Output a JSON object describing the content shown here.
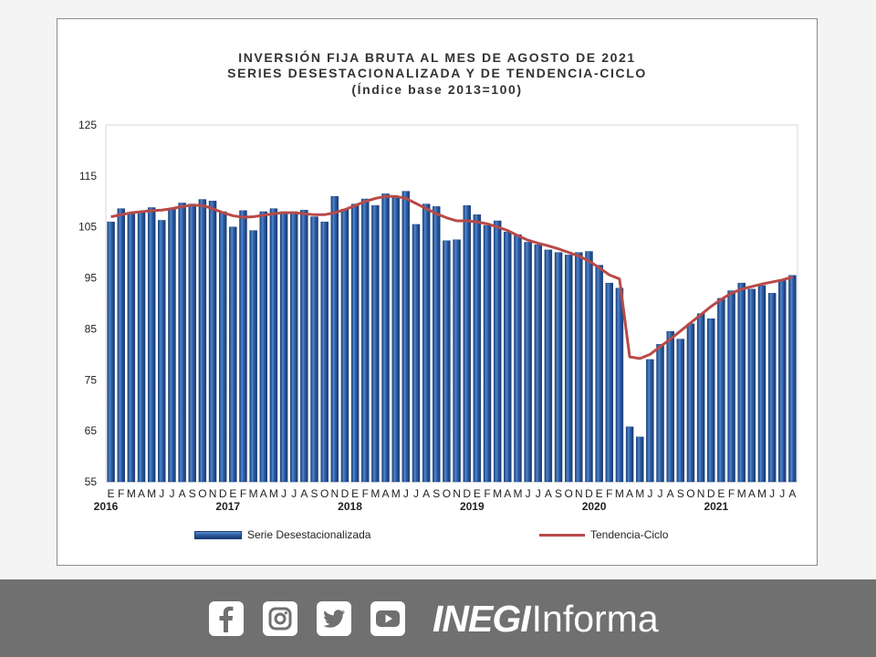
{
  "chart_data": {
    "type": "bar",
    "title": "INVERSIÓN FIJA BRUTA AL MES DE AGOSTO DE 2021",
    "subtitle": "SERIES DESESTACIONALIZADA Y DE TENDENCIA-CICLO",
    "subtitle2": "(Índice base 2013=100)",
    "xlabel": "",
    "ylabel": "",
    "ylim": [
      55,
      125
    ],
    "yticks": [
      "125",
      "115",
      "105",
      "95",
      "85",
      "75",
      "65",
      "55"
    ],
    "ytick_values": [
      125,
      115,
      105,
      95,
      85,
      75,
      65,
      55
    ],
    "month_letters": "EFMAMJJASONDEFMAMJJASONDEFMAMJJASONDEFMAMJJASONDEFMAMJJASONDEFMAMJJA",
    "years": [
      {
        "label": "2016",
        "index": 0
      },
      {
        "label": "2017",
        "index": 12
      },
      {
        "label": "2018",
        "index": 24
      },
      {
        "label": "2019",
        "index": 36
      },
      {
        "label": "2020",
        "index": 48
      },
      {
        "label": "2021",
        "index": 60
      }
    ],
    "series": [
      {
        "name": "Serie Desestacionalizada",
        "kind": "bar",
        "color": "#2c5aa0",
        "values": [
          106.0,
          108.6,
          107.6,
          108.0,
          108.8,
          106.3,
          108.5,
          109.7,
          109.5,
          110.4,
          110.1,
          108.0,
          105.0,
          108.2,
          104.3,
          108.0,
          108.6,
          108.0,
          108.0,
          108.3,
          107.0,
          106.0,
          111.0,
          108.5,
          109.5,
          110.5,
          109.2,
          111.5,
          111.0,
          112.0,
          105.5,
          109.5,
          109.0,
          102.3,
          102.5,
          109.2,
          107.4,
          105.3,
          106.2,
          104.0,
          103.5,
          102.0,
          101.5,
          100.5,
          100.0,
          99.5,
          100.0,
          100.2,
          97.5,
          94.0,
          93.0,
          65.8,
          63.8,
          79.0,
          82.0,
          84.5,
          83.0,
          86.0,
          88.0,
          87.0,
          91.0,
          92.5,
          94.0,
          92.8,
          93.5,
          92.0,
          94.5,
          95.5
        ]
      },
      {
        "name": "Tendencia-Ciclo",
        "kind": "line",
        "color": "#b94a48",
        "values": [
          107.0,
          107.4,
          107.8,
          108.0,
          108.2,
          108.3,
          108.6,
          109.0,
          109.3,
          109.2,
          108.6,
          107.8,
          107.2,
          106.9,
          107.0,
          107.3,
          107.6,
          107.8,
          107.8,
          107.6,
          107.4,
          107.4,
          107.8,
          108.4,
          109.2,
          110.0,
          110.6,
          111.0,
          111.0,
          110.6,
          109.6,
          108.6,
          107.6,
          106.8,
          106.2,
          106.2,
          106.0,
          105.6,
          105.0,
          104.3,
          103.3,
          102.4,
          101.8,
          101.3,
          100.7,
          100.0,
          99.3,
          98.3,
          97.0,
          95.6,
          94.8,
          79.5,
          79.2,
          80.0,
          81.5,
          83.0,
          84.6,
          86.2,
          87.8,
          89.4,
          90.8,
          92.0,
          92.8,
          93.3,
          93.8,
          94.2,
          94.6,
          95.2
        ]
      }
    ],
    "legend_position": "bottom"
  },
  "legend": {
    "series_label": "Serie Desestacionalizada",
    "trend_label": "Tendencia-Ciclo"
  },
  "footer": {
    "brand_strong": "INEGI",
    "brand_light": "Informa",
    "icons": [
      "facebook-icon",
      "instagram-icon",
      "twitter-icon",
      "youtube-icon"
    ]
  }
}
